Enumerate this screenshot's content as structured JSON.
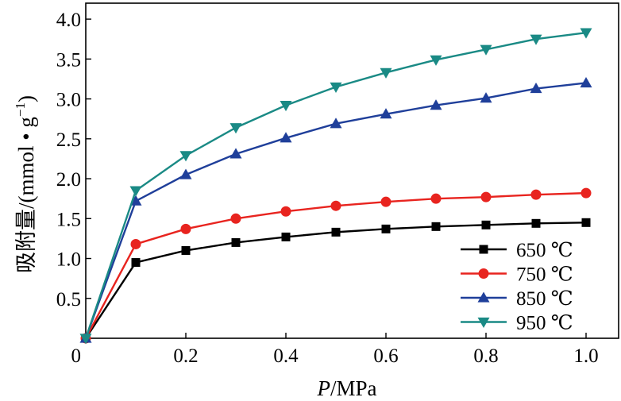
{
  "chart_data": {
    "type": "line",
    "ylabel": "吸附量/(mmol • g",
    "ylabel_sup": "−1",
    "ylabel_end": ")",
    "xlabel_var": "P",
    "xlabel_unit": "/MPa",
    "xlim": [
      0,
      1.0
    ],
    "ylim": [
      0,
      4.2
    ],
    "xticks": [
      0,
      0.2,
      0.4,
      0.6,
      0.8,
      1.0
    ],
    "xtick_labels": [
      "0",
      "0.2",
      "0.4",
      "0.6",
      "0.8",
      "1.0"
    ],
    "yticks": [
      0.5,
      1.0,
      1.5,
      2.0,
      2.5,
      3.0,
      3.5,
      4.0
    ],
    "ytick_labels": [
      "0.5",
      "1.0",
      "1.5",
      "2.0",
      "2.5",
      "3.0",
      "3.5",
      "4.0"
    ],
    "grid": false,
    "legend_position": "bottom-right",
    "x": [
      0,
      0.1,
      0.2,
      0.3,
      0.4,
      0.5,
      0.6,
      0.7,
      0.8,
      0.9,
      1.0
    ],
    "series": [
      {
        "name": "650 ℃",
        "color": "#000000",
        "marker": "square",
        "values": [
          0,
          0.95,
          1.1,
          1.2,
          1.27,
          1.33,
          1.37,
          1.4,
          1.42,
          1.44,
          1.45
        ]
      },
      {
        "name": "750 ℃",
        "color": "#e8241f",
        "marker": "circle",
        "values": [
          0,
          1.18,
          1.37,
          1.5,
          1.59,
          1.66,
          1.71,
          1.75,
          1.77,
          1.8,
          1.82
        ]
      },
      {
        "name": "850 ℃",
        "color": "#1f3f9a",
        "marker": "triangle-up",
        "values": [
          0,
          1.72,
          2.05,
          2.31,
          2.51,
          2.69,
          2.81,
          2.92,
          3.01,
          3.13,
          3.2
        ]
      },
      {
        "name": "950 ℃",
        "color": "#1a8a85",
        "marker": "triangle-down",
        "values": [
          0,
          1.85,
          2.29,
          2.64,
          2.92,
          3.15,
          3.33,
          3.49,
          3.62,
          3.75,
          3.83
        ]
      }
    ]
  }
}
